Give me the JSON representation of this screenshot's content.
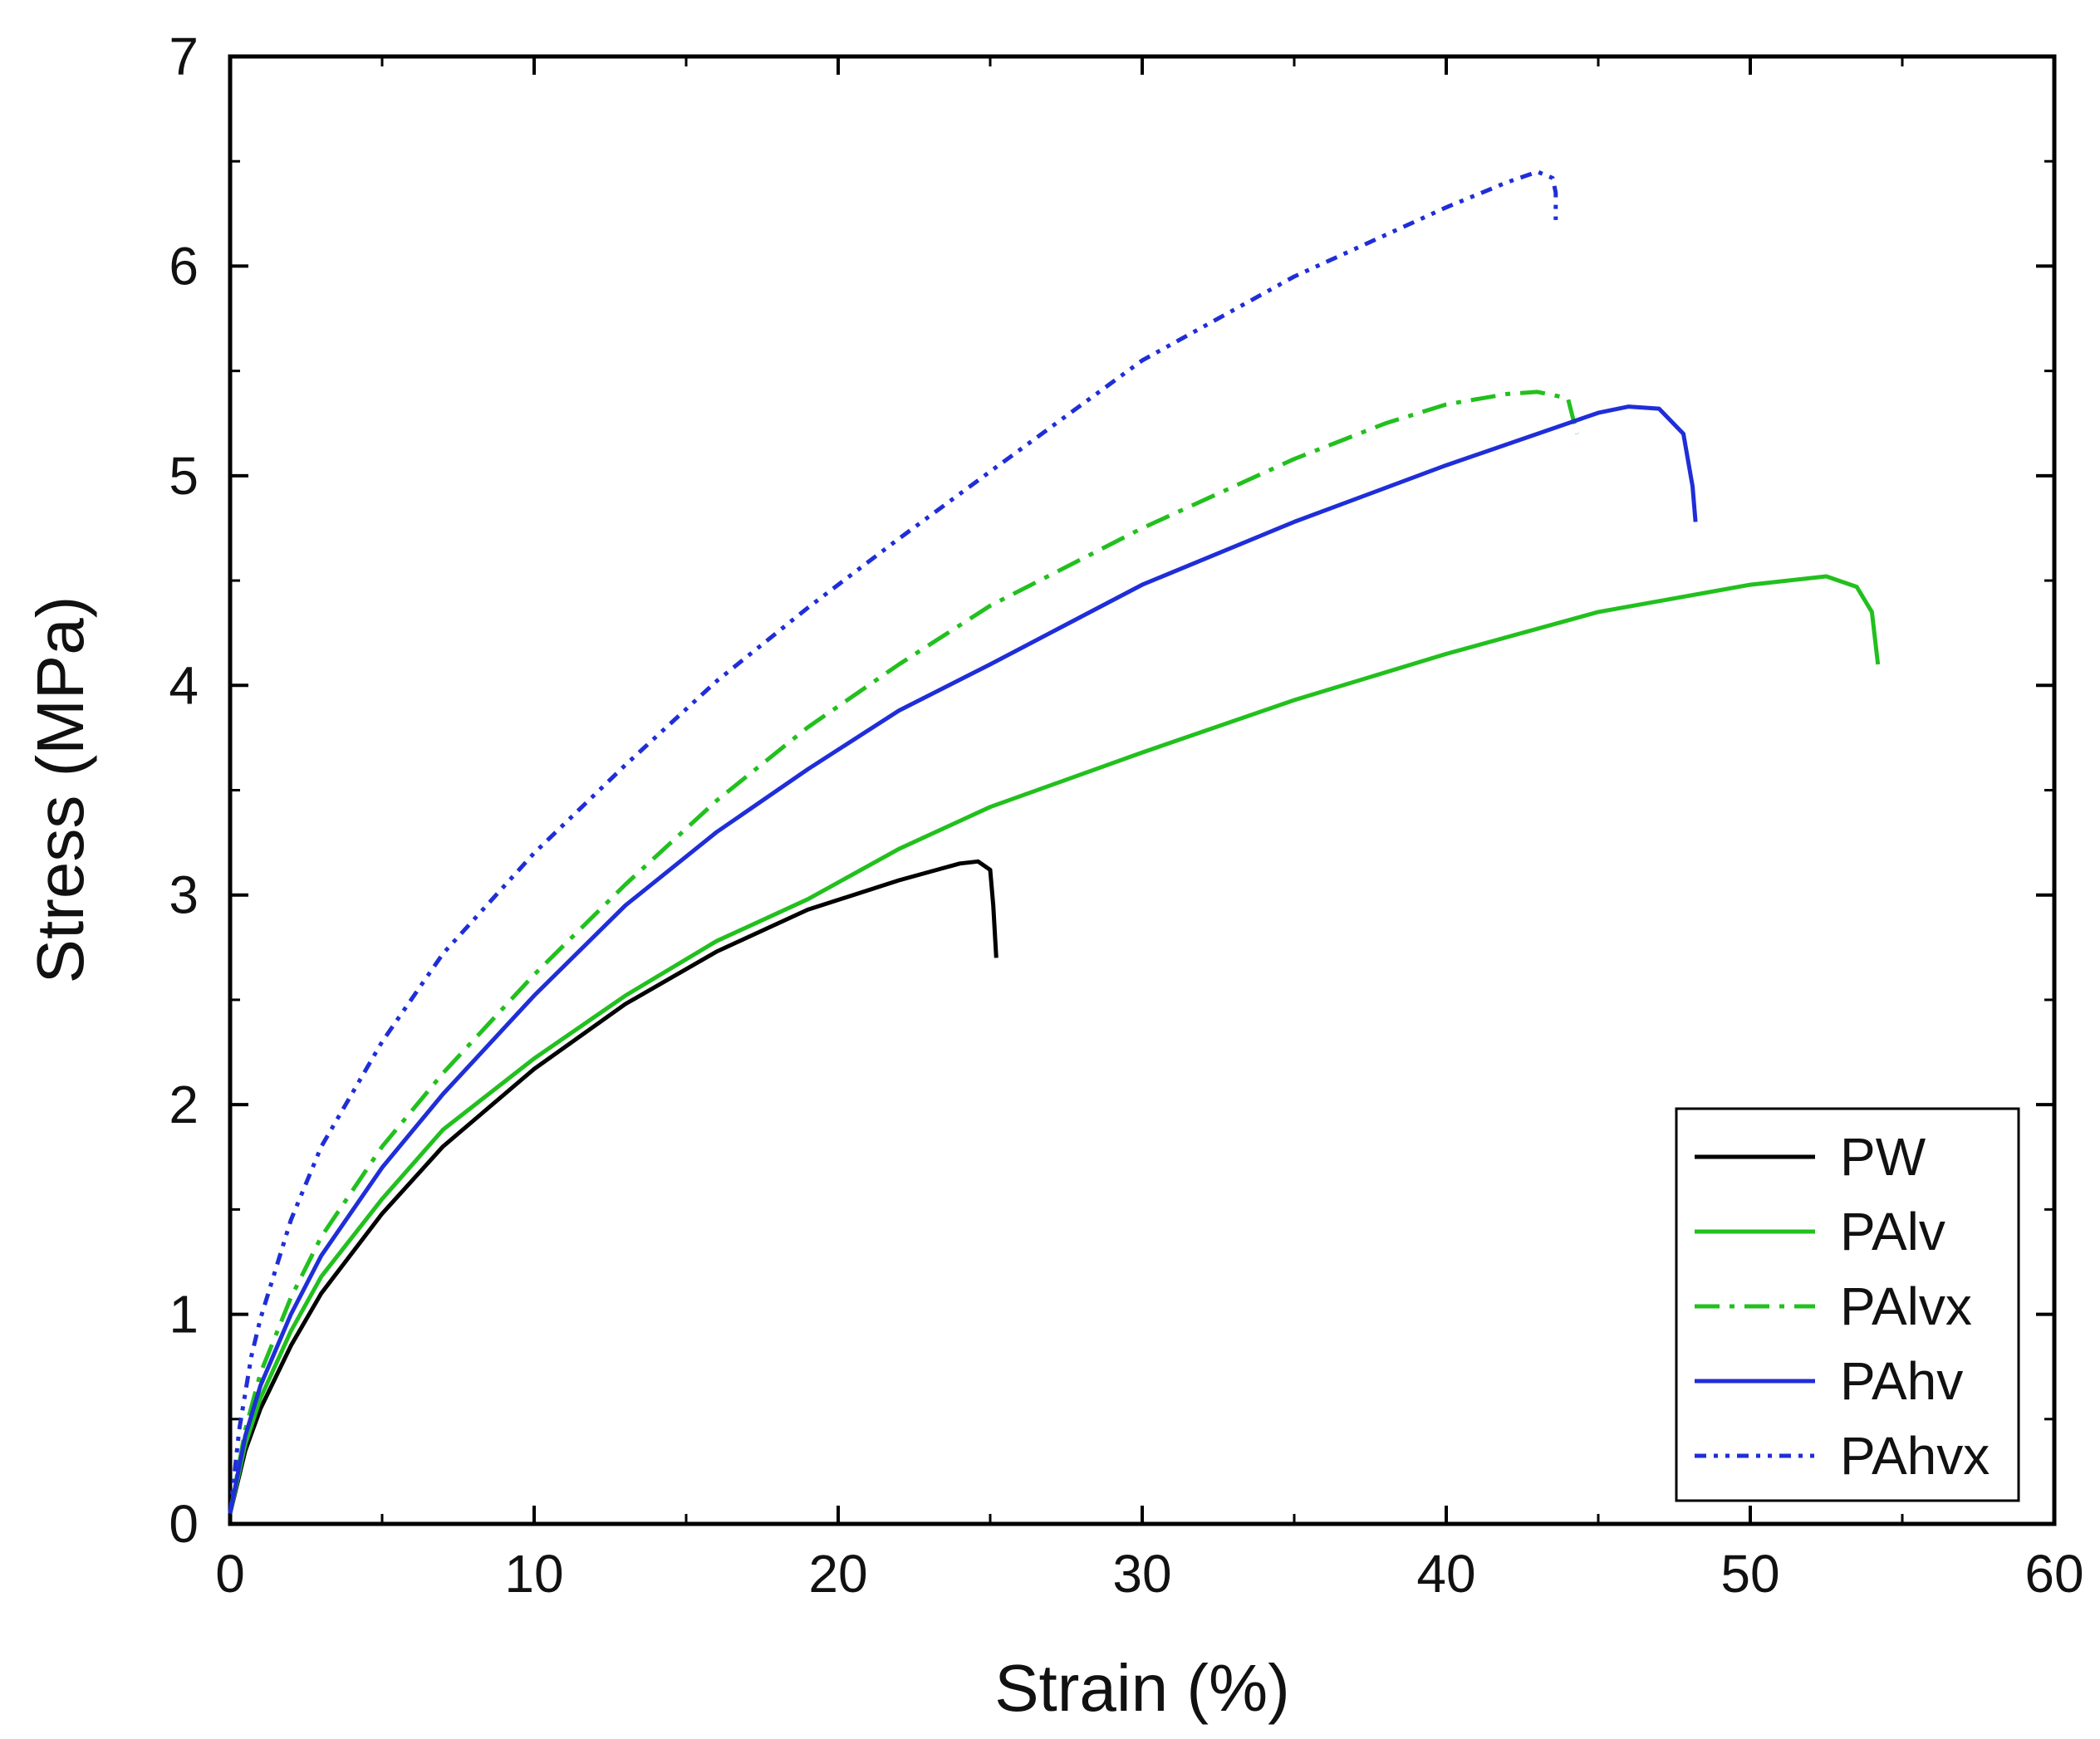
{
  "chart_data": {
    "type": "line",
    "title": "",
    "xlabel": "Strain (%)",
    "ylabel": "Stress (MPa)",
    "xlim": [
      0,
      60
    ],
    "ylim": [
      0,
      7
    ],
    "xticks": [
      0,
      10,
      20,
      30,
      40,
      50,
      60
    ],
    "yticks": [
      0,
      1,
      2,
      3,
      4,
      5,
      6,
      7
    ],
    "grid": false,
    "legend_position": "bottom-right",
    "series": [
      {
        "name": "PW",
        "color": "#000000",
        "dash": "solid",
        "points": [
          [
            0,
            0.05
          ],
          [
            0.5,
            0.35
          ],
          [
            1,
            0.55
          ],
          [
            2,
            0.85
          ],
          [
            3,
            1.1
          ],
          [
            5,
            1.48
          ],
          [
            7,
            1.8
          ],
          [
            10,
            2.17
          ],
          [
            13,
            2.48
          ],
          [
            16,
            2.73
          ],
          [
            19,
            2.93
          ],
          [
            22,
            3.07
          ],
          [
            24,
            3.15
          ],
          [
            24.6,
            3.16
          ],
          [
            25,
            3.12
          ],
          [
            25.1,
            2.95
          ],
          [
            25.2,
            2.7
          ]
        ]
      },
      {
        "name": "PAlv",
        "color": "#22c01e",
        "dash": "solid",
        "points": [
          [
            0,
            0.05
          ],
          [
            0.5,
            0.38
          ],
          [
            1,
            0.6
          ],
          [
            2,
            0.92
          ],
          [
            3,
            1.18
          ],
          [
            5,
            1.55
          ],
          [
            7,
            1.88
          ],
          [
            10,
            2.22
          ],
          [
            13,
            2.52
          ],
          [
            16,
            2.78
          ],
          [
            19,
            2.98
          ],
          [
            22,
            3.22
          ],
          [
            25,
            3.42
          ],
          [
            30,
            3.68
          ],
          [
            35,
            3.93
          ],
          [
            40,
            4.15
          ],
          [
            45,
            4.35
          ],
          [
            50,
            4.48
          ],
          [
            52.5,
            4.52
          ],
          [
            53.5,
            4.47
          ],
          [
            54,
            4.35
          ],
          [
            54.2,
            4.1
          ]
        ]
      },
      {
        "name": "PAlvx",
        "color": "#22c01e",
        "dash": "dashdot",
        "points": [
          [
            0,
            0.05
          ],
          [
            0.5,
            0.45
          ],
          [
            1,
            0.72
          ],
          [
            2,
            1.08
          ],
          [
            3,
            1.37
          ],
          [
            5,
            1.8
          ],
          [
            7,
            2.15
          ],
          [
            10,
            2.62
          ],
          [
            13,
            3.05
          ],
          [
            16,
            3.45
          ],
          [
            19,
            3.8
          ],
          [
            22,
            4.1
          ],
          [
            25,
            4.38
          ],
          [
            30,
            4.75
          ],
          [
            35,
            5.08
          ],
          [
            38,
            5.25
          ],
          [
            40,
            5.34
          ],
          [
            42,
            5.39
          ],
          [
            43,
            5.4
          ],
          [
            44,
            5.37
          ],
          [
            44.3,
            5.2
          ]
        ]
      },
      {
        "name": "PAhv",
        "color": "#1f2ed8",
        "dash": "solid",
        "points": [
          [
            0,
            0.05
          ],
          [
            0.5,
            0.42
          ],
          [
            1,
            0.66
          ],
          [
            2,
            1.0
          ],
          [
            3,
            1.28
          ],
          [
            5,
            1.7
          ],
          [
            7,
            2.05
          ],
          [
            10,
            2.52
          ],
          [
            13,
            2.95
          ],
          [
            16,
            3.3
          ],
          [
            19,
            3.6
          ],
          [
            22,
            3.88
          ],
          [
            25,
            4.1
          ],
          [
            30,
            4.48
          ],
          [
            35,
            4.78
          ],
          [
            40,
            5.05
          ],
          [
            43,
            5.2
          ],
          [
            45,
            5.3
          ],
          [
            46,
            5.33
          ],
          [
            47,
            5.32
          ],
          [
            47.8,
            5.2
          ],
          [
            48.1,
            4.95
          ],
          [
            48.2,
            4.78
          ]
        ]
      },
      {
        "name": "PAhvx",
        "color": "#1f2ed8",
        "dash": "dashdotdot",
        "points": [
          [
            0,
            0.05
          ],
          [
            0.3,
            0.45
          ],
          [
            0.7,
            0.8
          ],
          [
            1,
            0.98
          ],
          [
            2,
            1.45
          ],
          [
            3,
            1.8
          ],
          [
            5,
            2.3
          ],
          [
            7,
            2.72
          ],
          [
            10,
            3.2
          ],
          [
            13,
            3.62
          ],
          [
            16,
            4.02
          ],
          [
            19,
            4.37
          ],
          [
            22,
            4.7
          ],
          [
            25,
            5.02
          ],
          [
            30,
            5.55
          ],
          [
            35,
            5.95
          ],
          [
            40,
            6.28
          ],
          [
            42,
            6.4
          ],
          [
            43,
            6.45
          ],
          [
            43.5,
            6.42
          ],
          [
            43.6,
            6.35
          ],
          [
            43.6,
            6.22
          ]
        ]
      }
    ]
  }
}
